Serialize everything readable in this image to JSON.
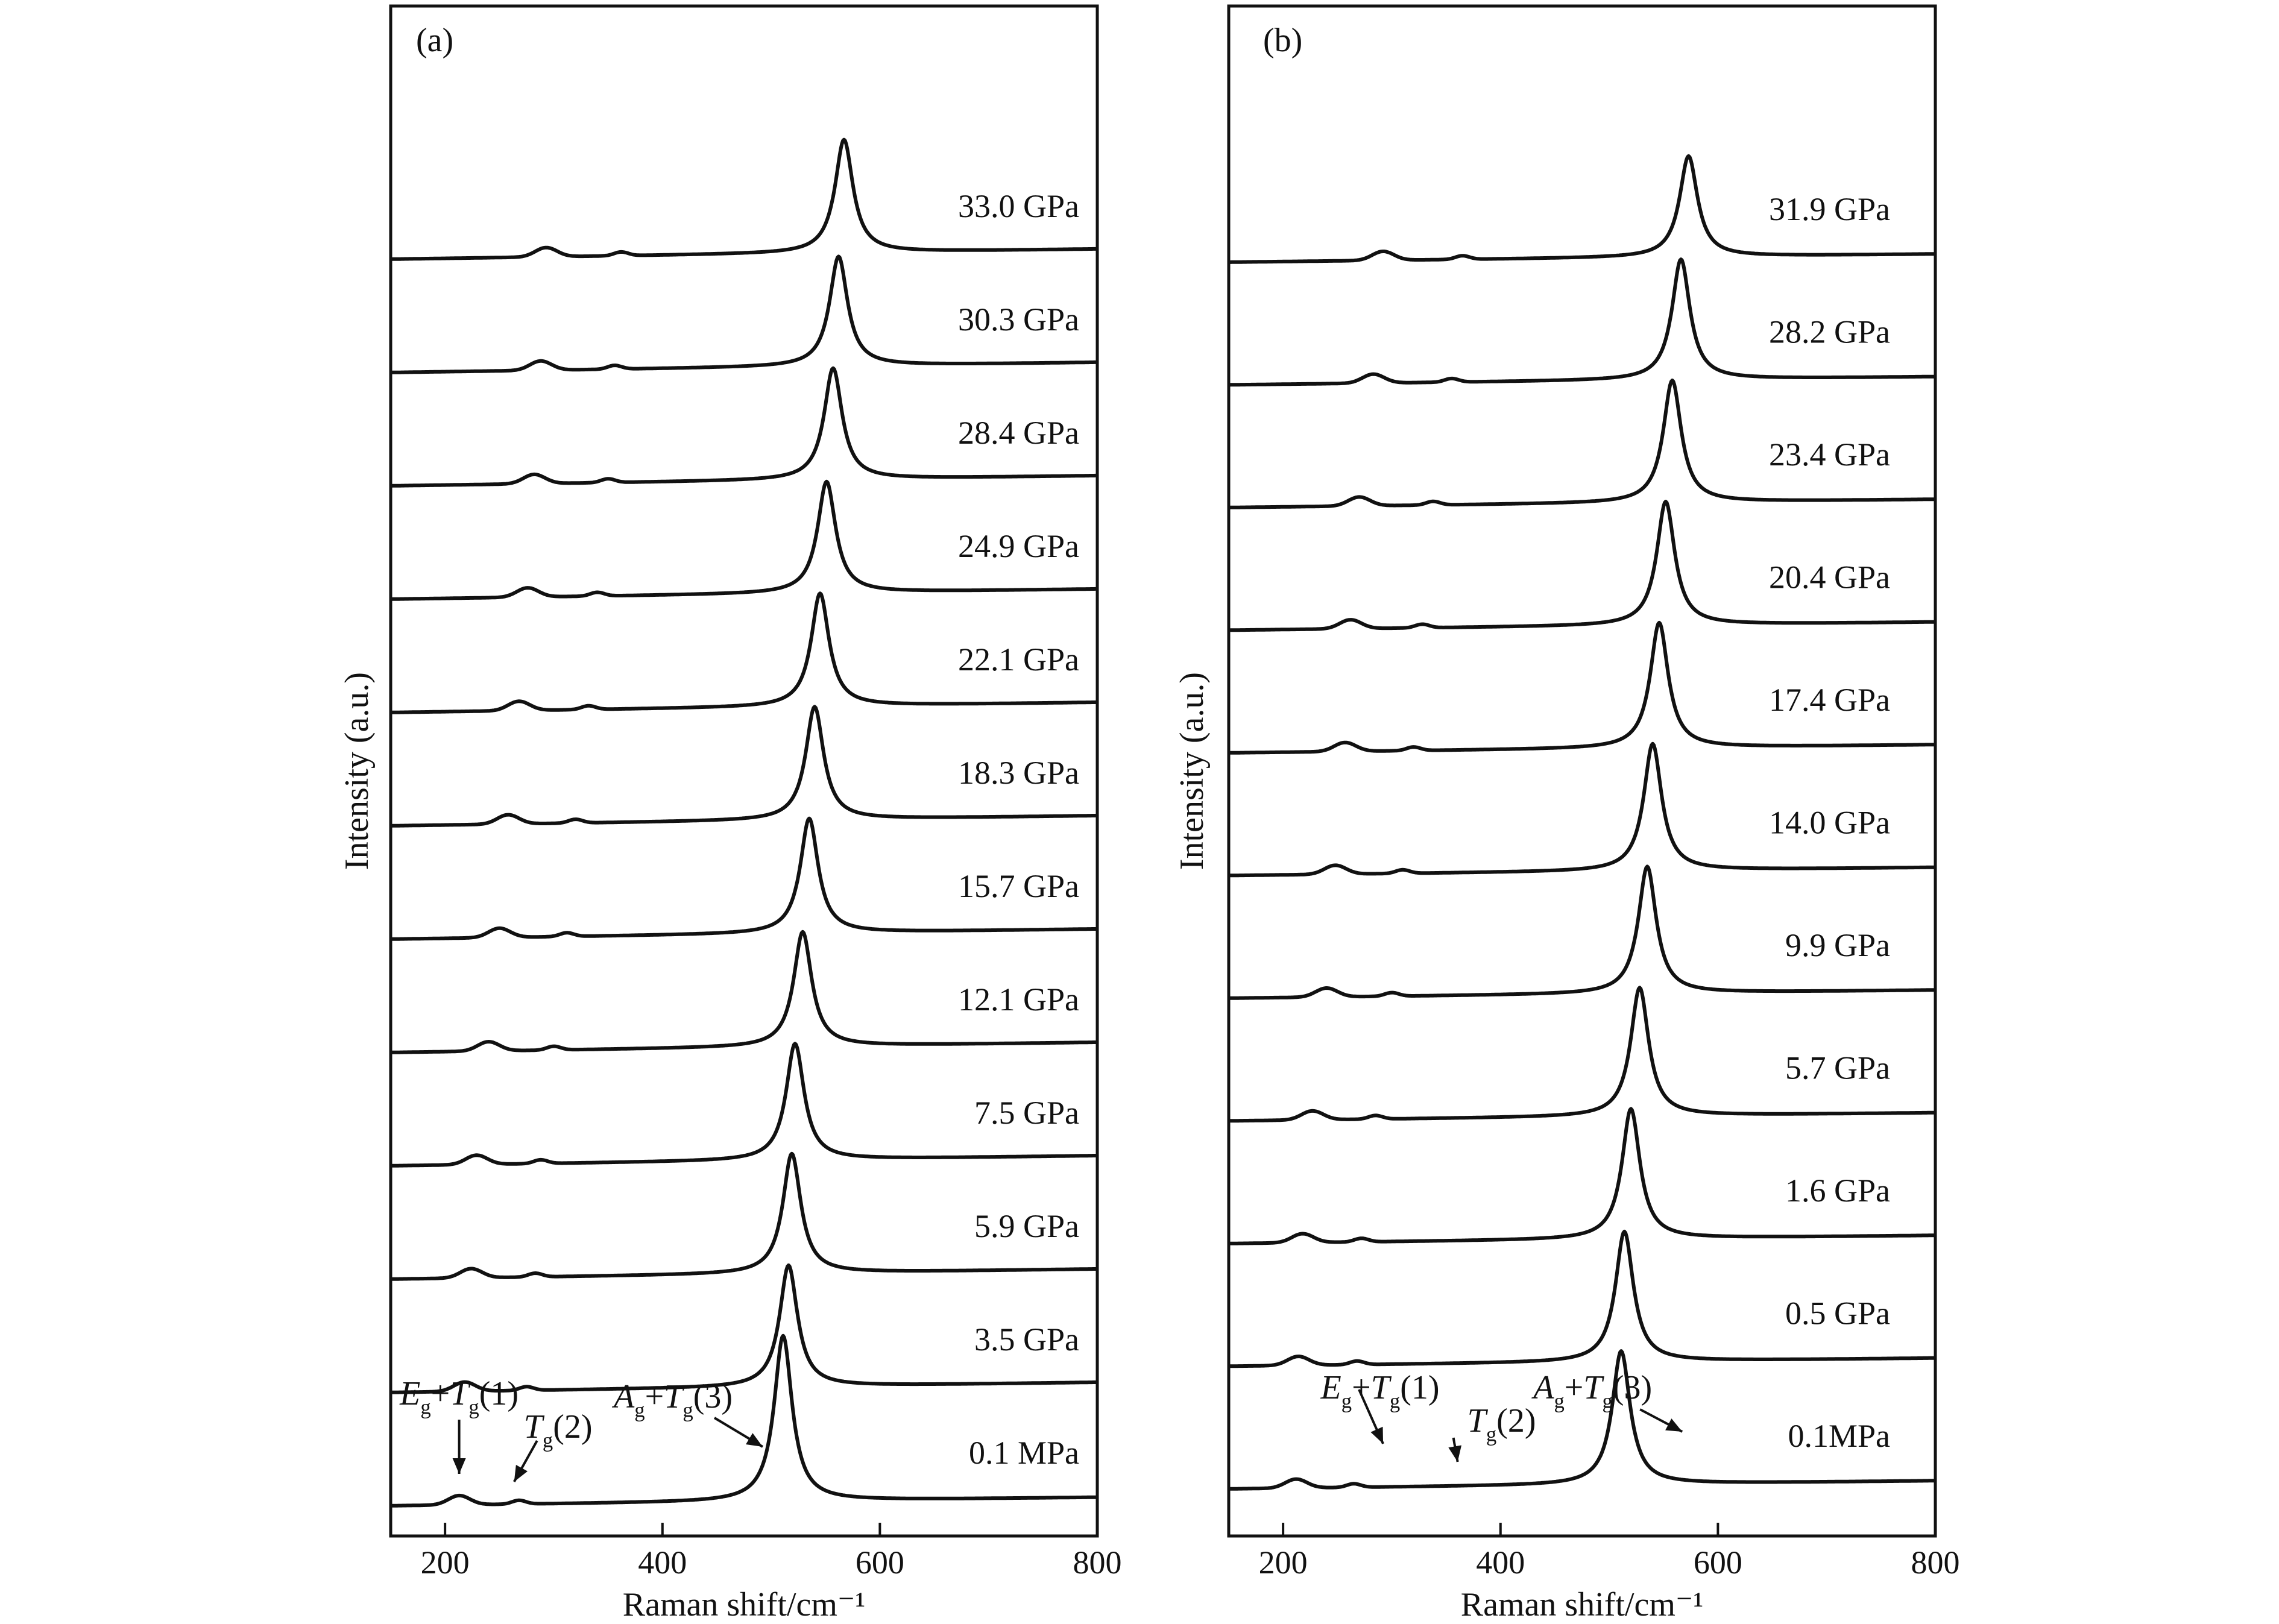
{
  "colors": {
    "line": "#111111",
    "background": "#ffffff"
  },
  "chart_data": [
    {
      "type": "line",
      "panel_label": "(a)",
      "xlabel": "Raman shift/cm⁻¹",
      "ylabel": "Intensity (a.u.)",
      "xlim": [
        150,
        800
      ],
      "xticks": [
        "200",
        "400",
        "600",
        "800"
      ],
      "annotations": [
        {
          "text": "Eg+Tg(1)",
          "x": 213
        },
        {
          "text": "Tg(2)",
          "x": 268
        },
        {
          "text": "Ag+Tg(3)",
          "x": 470
        }
      ],
      "series": [
        {
          "name": "0.1 MPa",
          "peak": 511,
          "peak_height": 9.8,
          "mode1": 213,
          "mode2": 268,
          "baseline_slope": 0.5
        },
        {
          "name": "3.5 GPa",
          "peak": 516,
          "peak_height": 7.2,
          "mode1": 218,
          "mode2": 275,
          "baseline_slope": 0.6
        },
        {
          "name": "5.9 GPa",
          "peak": 519,
          "peak_height": 7.1,
          "mode1": 224,
          "mode2": 283,
          "baseline_slope": 0.6
        },
        {
          "name": "7.5 GPa",
          "peak": 522,
          "peak_height": 6.9,
          "mode1": 229,
          "mode2": 288,
          "baseline_slope": 0.6
        },
        {
          "name": "12.1 GPa",
          "peak": 529,
          "peak_height": 6.8,
          "mode1": 240,
          "mode2": 300,
          "baseline_slope": 0.6
        },
        {
          "name": "15.7 GPa",
          "peak": 535,
          "peak_height": 6.8,
          "mode1": 250,
          "mode2": 312,
          "baseline_slope": 0.6
        },
        {
          "name": "18.3 GPa",
          "peak": 540,
          "peak_height": 6.7,
          "mode1": 258,
          "mode2": 320,
          "baseline_slope": 0.6
        },
        {
          "name": "22.1 GPa",
          "peak": 545,
          "peak_height": 6.7,
          "mode1": 268,
          "mode2": 332,
          "baseline_slope": 0.6
        },
        {
          "name": "24.9 GPa",
          "peak": 551,
          "peak_height": 6.6,
          "mode1": 276,
          "mode2": 340,
          "baseline_slope": 0.6
        },
        {
          "name": "28.4 GPa",
          "peak": 557,
          "peak_height": 6.6,
          "mode1": 282,
          "mode2": 350,
          "baseline_slope": 0.6
        },
        {
          "name": "30.3 GPa",
          "peak": 562,
          "peak_height": 6.5,
          "mode1": 288,
          "mode2": 356,
          "baseline_slope": 0.6
        },
        {
          "name": "33.0 GPa",
          "peak": 567,
          "peak_height": 6.7,
          "mode1": 293,
          "mode2": 362,
          "baseline_slope": 0.6
        }
      ]
    },
    {
      "type": "line",
      "panel_label": "(b)",
      "xlabel": "Raman shift/cm⁻¹",
      "ylabel": "Intensity (a.u.)",
      "xlim": [
        150,
        800
      ],
      "xticks": [
        "200",
        "400",
        "600",
        "800"
      ],
      "annotations": [
        {
          "text": "Eg+Tg(1)",
          "x": 292
        },
        {
          "text": "Tg(2)",
          "x": 365
        },
        {
          "text": "Ag+Tg(3)",
          "x": 545
        }
      ],
      "series": [
        {
          "name": "31.9 GPa",
          "peak": 573,
          "peak_height": 6.2,
          "mode1": 292,
          "mode2": 365,
          "baseline_slope": 0.5
        },
        {
          "name": "28.2 GPa",
          "peak": 566,
          "peak_height": 7.4,
          "mode1": 283,
          "mode2": 355,
          "baseline_slope": 0.5
        },
        {
          "name": "23.4 GPa",
          "peak": 558,
          "peak_height": 7.5,
          "mode1": 270,
          "mode2": 338,
          "baseline_slope": 0.5
        },
        {
          "name": "20.4 GPa",
          "peak": 552,
          "peak_height": 7.6,
          "mode1": 262,
          "mode2": 328,
          "baseline_slope": 0.5
        },
        {
          "name": "17.4 GPa",
          "peak": 546,
          "peak_height": 7.7,
          "mode1": 257,
          "mode2": 320,
          "baseline_slope": 0.5
        },
        {
          "name": "14.0 GPa",
          "peak": 540,
          "peak_height": 7.8,
          "mode1": 248,
          "mode2": 310,
          "baseline_slope": 0.5
        },
        {
          "name": "9.9 GPa",
          "peak": 535,
          "peak_height": 7.8,
          "mode1": 240,
          "mode2": 300,
          "baseline_slope": 0.5
        },
        {
          "name": "5.7 GPa",
          "peak": 528,
          "peak_height": 7.9,
          "mode1": 227,
          "mode2": 285,
          "baseline_slope": 0.5
        },
        {
          "name": "1.6 GPa",
          "peak": 520,
          "peak_height": 8.0,
          "mode1": 218,
          "mode2": 272,
          "baseline_slope": 0.5
        },
        {
          "name": "0.5 GPa",
          "peak": 514,
          "peak_height": 8.0,
          "mode1": 214,
          "mode2": 268,
          "baseline_slope": 0.5
        },
        {
          "name": "0.1MPa",
          "peak": 511,
          "peak_height": 8.2,
          "mode1": 212,
          "mode2": 265,
          "baseline_slope": 0.5
        }
      ]
    }
  ]
}
